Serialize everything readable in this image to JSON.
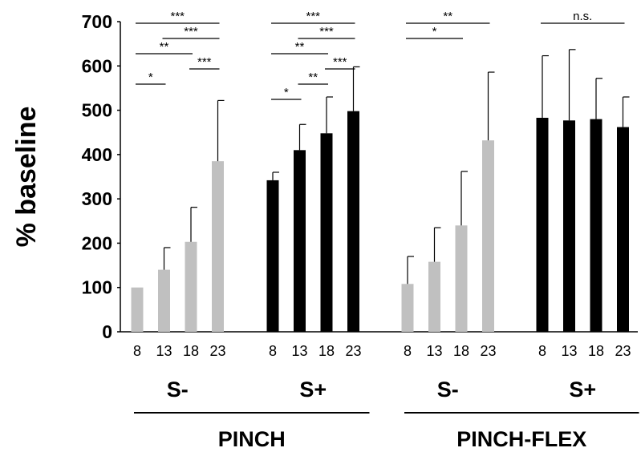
{
  "chart_data": {
    "type": "bar",
    "ylabel": "% baseline",
    "ylim": [
      0,
      700
    ],
    "yticks": [
      "0",
      "100",
      "200",
      "300",
      "400",
      "500",
      "600",
      "700"
    ],
    "xtick_labels": [
      "8",
      "13",
      "18",
      "23"
    ],
    "colors": {
      "S-": "#c0c0c0",
      "S+": "#000000"
    },
    "groups": [
      {
        "condition": "PINCH",
        "subgroup": "S-",
        "values": [
          100,
          140,
          203,
          385
        ],
        "errors": [
          0,
          50,
          78,
          137
        ]
      },
      {
        "condition": "PINCH",
        "subgroup": "S+",
        "values": [
          342,
          410,
          448,
          498
        ],
        "errors": [
          18,
          58,
          82,
          100
        ]
      },
      {
        "condition": "PINCH-FLEX",
        "subgroup": "S-",
        "values": [
          108,
          158,
          240,
          432
        ],
        "errors": [
          62,
          77,
          122,
          154
        ]
      },
      {
        "condition": "PINCH-FLEX",
        "subgroup": "S+",
        "values": [
          483,
          477,
          480,
          462
        ],
        "errors": [
          140,
          160,
          92,
          68
        ]
      }
    ],
    "conditions": [
      "PINCH",
      "PINCH-FLEX"
    ],
    "subgroups": [
      "S-",
      "S+",
      "S-",
      "S+"
    ],
    "significance": [
      {
        "group": 0,
        "from": 0,
        "to": 3,
        "label": "***"
      },
      {
        "group": 0,
        "from": 1,
        "to": 3,
        "label": "***"
      },
      {
        "group": 0,
        "from": 0,
        "to": 2,
        "label": "**"
      },
      {
        "group": 0,
        "from": 2,
        "to": 3,
        "label": "***"
      },
      {
        "group": 0,
        "from": 0,
        "to": 1,
        "label": "*"
      },
      {
        "group": 1,
        "from": 0,
        "to": 3,
        "label": "***"
      },
      {
        "group": 1,
        "from": 1,
        "to": 3,
        "label": "***"
      },
      {
        "group": 1,
        "from": 0,
        "to": 2,
        "label": "**"
      },
      {
        "group": 1,
        "from": 2,
        "to": 3,
        "label": "***"
      },
      {
        "group": 1,
        "from": 1,
        "to": 2,
        "label": "**"
      },
      {
        "group": 1,
        "from": 0,
        "to": 1,
        "label": "*"
      },
      {
        "group": 2,
        "from": 0,
        "to": 3,
        "label": "**"
      },
      {
        "group": 2,
        "from": 0,
        "to": 2,
        "label": "*"
      },
      {
        "group": 3,
        "from": 0,
        "to": 3,
        "label": "n.s."
      }
    ]
  }
}
